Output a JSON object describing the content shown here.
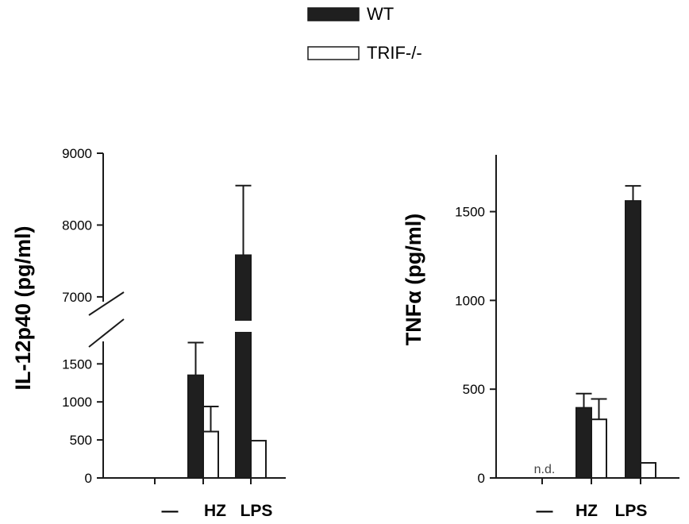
{
  "legend": {
    "items": [
      {
        "label": "WT",
        "fill": "#1f1f1f"
      },
      {
        "label": "TRIF-/-",
        "fill": "#ffffff"
      }
    ]
  },
  "colors": {
    "ink": "#1a1a1a",
    "wt": "#1f1f1f",
    "trif": "#ffffff"
  },
  "chart_data": [
    {
      "type": "bar",
      "ylabel": "IL-12p40 (pg/ml)",
      "categories": [
        "—",
        "HZ",
        "LPS"
      ],
      "axis_break": {
        "lower": [
          0,
          1900
        ],
        "upper": [
          6800,
          9000
        ]
      },
      "lower_ticks": [
        0,
        500,
        1000,
        1500
      ],
      "upper_ticks": [
        7000,
        8000,
        9000
      ],
      "series": [
        {
          "name": "WT",
          "values": [
            0,
            1350,
            7580
          ],
          "errors": [
            0,
            430,
            970
          ]
        },
        {
          "name": "TRIF-/-",
          "values": [
            0,
            610,
            490
          ],
          "errors": [
            0,
            330,
            0
          ]
        }
      ]
    },
    {
      "type": "bar",
      "ylabel": "TNFα (pg/ml)",
      "categories": [
        "—",
        "HZ",
        "LPS"
      ],
      "ylim": [
        0,
        1820
      ],
      "ticks": [
        0,
        500,
        1000,
        1500
      ],
      "annotation": "n.d.",
      "series": [
        {
          "name": "WT",
          "values": [
            0,
            395,
            1560
          ],
          "errors": [
            0,
            80,
            85
          ]
        },
        {
          "name": "TRIF-/-",
          "values": [
            0,
            330,
            85
          ],
          "errors": [
            0,
            115,
            0
          ]
        }
      ]
    }
  ]
}
